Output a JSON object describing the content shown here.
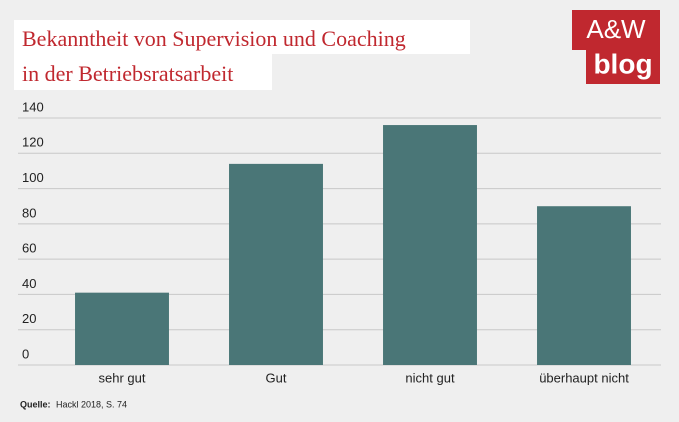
{
  "chart_data": {
    "type": "bar",
    "title": [
      "Bekanntheit von Supervision und Coaching",
      "in der Betriebsratsarbeit"
    ],
    "categories": [
      "sehr gut",
      "Gut",
      "nicht gut",
      "überhaupt nicht"
    ],
    "values": [
      41,
      114,
      136,
      90
    ],
    "color": "#4a7677",
    "ylim": [
      0,
      140
    ],
    "yticks": [
      0,
      20,
      40,
      60,
      80,
      100,
      120,
      140
    ],
    "grid": true,
    "source_label": "Quelle:",
    "source": "Hackl 2018, S. 74"
  },
  "logo": {
    "line1": "A&W",
    "line2": "blog"
  }
}
